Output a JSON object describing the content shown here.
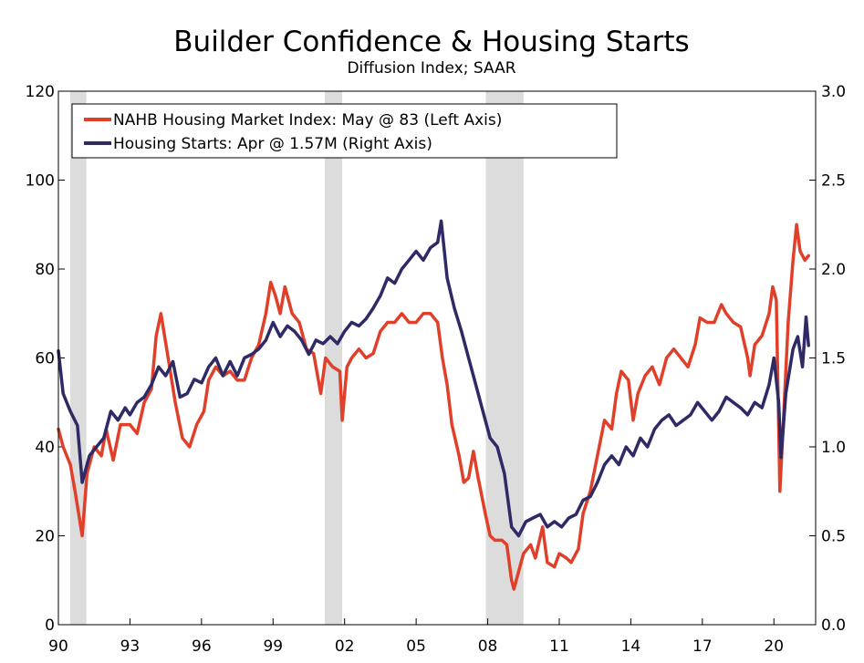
{
  "chart_data": {
    "type": "line",
    "title": "Builder Confidence & Housing Starts",
    "subtitle": "Diffusion Index; SAAR",
    "x_range": [
      1990.0,
      2021.75
    ],
    "x_ticks": [
      1990,
      1993,
      1996,
      1999,
      2002,
      2005,
      2008,
      2011,
      2014,
      2017,
      2020
    ],
    "x_tick_labels": [
      "90",
      "93",
      "96",
      "99",
      "02",
      "05",
      "08",
      "11",
      "14",
      "17",
      "20"
    ],
    "y_left": {
      "min": 0,
      "max": 120,
      "ticks": [
        0,
        20,
        40,
        60,
        80,
        100,
        120
      ],
      "tick_labels": [
        "0",
        "20",
        "40",
        "60",
        "80",
        "100",
        "120"
      ]
    },
    "y_right": {
      "min": 0.0,
      "max": 3.0,
      "ticks": [
        0.0,
        0.5,
        1.0,
        1.5,
        2.0,
        2.5,
        3.0
      ],
      "tick_labels": [
        "0.0",
        "0.5",
        "1.0",
        "1.5",
        "2.0",
        "2.5",
        "3.0"
      ]
    },
    "recessions": [
      [
        1990.5,
        1991.17
      ],
      [
        2001.17,
        2001.9
      ],
      [
        2007.92,
        2009.5
      ]
    ],
    "legend_position": "top-left",
    "series": [
      {
        "name": "NAHB Housing Market Index: May @ 83 (Left Axis)",
        "axis": "left",
        "color": "#e0402a",
        "points": [
          [
            1990.0,
            44
          ],
          [
            1990.2,
            40
          ],
          [
            1990.5,
            36
          ],
          [
            1990.7,
            30
          ],
          [
            1991.0,
            20
          ],
          [
            1991.2,
            34
          ],
          [
            1991.5,
            40
          ],
          [
            1991.8,
            38
          ],
          [
            1992.0,
            44
          ],
          [
            1992.3,
            37
          ],
          [
            1992.6,
            45
          ],
          [
            1993.0,
            45
          ],
          [
            1993.3,
            43
          ],
          [
            1993.6,
            50
          ],
          [
            1993.9,
            53
          ],
          [
            1994.1,
            65
          ],
          [
            1994.3,
            70
          ],
          [
            1994.6,
            60
          ],
          [
            1994.9,
            50
          ],
          [
            1995.2,
            42
          ],
          [
            1995.5,
            40
          ],
          [
            1995.8,
            45
          ],
          [
            1996.1,
            48
          ],
          [
            1996.3,
            55
          ],
          [
            1996.6,
            58
          ],
          [
            1996.9,
            56
          ],
          [
            1997.2,
            57
          ],
          [
            1997.5,
            55
          ],
          [
            1997.8,
            55
          ],
          [
            1998.1,
            60
          ],
          [
            1998.4,
            63
          ],
          [
            1998.7,
            70
          ],
          [
            1998.9,
            77
          ],
          [
            1999.1,
            74
          ],
          [
            1999.3,
            70
          ],
          [
            1999.5,
            76
          ],
          [
            1999.8,
            70
          ],
          [
            2000.1,
            68
          ],
          [
            2000.4,
            62
          ],
          [
            2000.7,
            61
          ],
          [
            2001.0,
            52
          ],
          [
            2001.2,
            60
          ],
          [
            2001.5,
            58
          ],
          [
            2001.8,
            57
          ],
          [
            2001.9,
            46
          ],
          [
            2002.1,
            58
          ],
          [
            2002.3,
            60
          ],
          [
            2002.6,
            62
          ],
          [
            2002.9,
            60
          ],
          [
            2003.2,
            61
          ],
          [
            2003.5,
            66
          ],
          [
            2003.8,
            68
          ],
          [
            2004.1,
            68
          ],
          [
            2004.4,
            70
          ],
          [
            2004.7,
            68
          ],
          [
            2005.0,
            68
          ],
          [
            2005.3,
            70
          ],
          [
            2005.6,
            70
          ],
          [
            2005.9,
            68
          ],
          [
            2006.1,
            60
          ],
          [
            2006.3,
            54
          ],
          [
            2006.5,
            45
          ],
          [
            2006.8,
            38
          ],
          [
            2007.0,
            32
          ],
          [
            2007.2,
            33
          ],
          [
            2007.4,
            39
          ],
          [
            2007.6,
            33
          ],
          [
            2007.9,
            25
          ],
          [
            2008.1,
            20
          ],
          [
            2008.3,
            19
          ],
          [
            2008.6,
            19
          ],
          [
            2008.8,
            18
          ],
          [
            2009.0,
            10
          ],
          [
            2009.1,
            8
          ],
          [
            2009.3,
            12
          ],
          [
            2009.5,
            16
          ],
          [
            2009.8,
            18
          ],
          [
            2010.0,
            15
          ],
          [
            2010.3,
            22
          ],
          [
            2010.5,
            14
          ],
          [
            2010.8,
            13
          ],
          [
            2011.0,
            16
          ],
          [
            2011.3,
            15
          ],
          [
            2011.5,
            14
          ],
          [
            2011.8,
            17
          ],
          [
            2012.0,
            25
          ],
          [
            2012.3,
            30
          ],
          [
            2012.6,
            38
          ],
          [
            2012.9,
            46
          ],
          [
            2013.2,
            44
          ],
          [
            2013.4,
            52
          ],
          [
            2013.6,
            57
          ],
          [
            2013.9,
            55
          ],
          [
            2014.1,
            46
          ],
          [
            2014.3,
            52
          ],
          [
            2014.6,
            56
          ],
          [
            2014.9,
            58
          ],
          [
            2015.2,
            54
          ],
          [
            2015.5,
            60
          ],
          [
            2015.8,
            62
          ],
          [
            2016.1,
            60
          ],
          [
            2016.4,
            58
          ],
          [
            2016.7,
            63
          ],
          [
            2016.9,
            69
          ],
          [
            2017.2,
            68
          ],
          [
            2017.5,
            68
          ],
          [
            2017.8,
            72
          ],
          [
            2018.0,
            70
          ],
          [
            2018.3,
            68
          ],
          [
            2018.6,
            67
          ],
          [
            2018.9,
            60
          ],
          [
            2019.0,
            56
          ],
          [
            2019.2,
            63
          ],
          [
            2019.5,
            65
          ],
          [
            2019.8,
            70
          ],
          [
            2019.95,
            76
          ],
          [
            2020.1,
            73
          ],
          [
            2020.25,
            30
          ],
          [
            2020.4,
            46
          ],
          [
            2020.6,
            68
          ],
          [
            2020.8,
            82
          ],
          [
            2020.95,
            90
          ],
          [
            2021.1,
            84
          ],
          [
            2021.3,
            82
          ],
          [
            2021.45,
            83
          ]
        ]
      },
      {
        "name": "Housing Starts: Apr @ 1.57M (Right Axis)",
        "axis": "right",
        "color": "#2e2a66",
        "points": [
          [
            1990.0,
            1.54
          ],
          [
            1990.2,
            1.3
          ],
          [
            1990.5,
            1.2
          ],
          [
            1990.8,
            1.12
          ],
          [
            1991.0,
            0.8
          ],
          [
            1991.3,
            0.95
          ],
          [
            1991.6,
            1.0
          ],
          [
            1991.9,
            1.05
          ],
          [
            1992.2,
            1.2
          ],
          [
            1992.5,
            1.15
          ],
          [
            1992.8,
            1.22
          ],
          [
            1993.0,
            1.18
          ],
          [
            1993.3,
            1.25
          ],
          [
            1993.6,
            1.28
          ],
          [
            1993.9,
            1.35
          ],
          [
            1994.2,
            1.45
          ],
          [
            1994.5,
            1.4
          ],
          [
            1994.8,
            1.48
          ],
          [
            1995.1,
            1.28
          ],
          [
            1995.4,
            1.3
          ],
          [
            1995.7,
            1.38
          ],
          [
            1996.0,
            1.36
          ],
          [
            1996.3,
            1.45
          ],
          [
            1996.6,
            1.5
          ],
          [
            1996.9,
            1.4
          ],
          [
            1997.2,
            1.48
          ],
          [
            1997.5,
            1.4
          ],
          [
            1997.8,
            1.5
          ],
          [
            1998.1,
            1.52
          ],
          [
            1998.4,
            1.55
          ],
          [
            1998.7,
            1.6
          ],
          [
            1999.0,
            1.7
          ],
          [
            1999.3,
            1.62
          ],
          [
            1999.6,
            1.68
          ],
          [
            1999.9,
            1.65
          ],
          [
            2000.2,
            1.6
          ],
          [
            2000.5,
            1.52
          ],
          [
            2000.8,
            1.6
          ],
          [
            2001.1,
            1.58
          ],
          [
            2001.4,
            1.62
          ],
          [
            2001.7,
            1.58
          ],
          [
            2002.0,
            1.65
          ],
          [
            2002.3,
            1.7
          ],
          [
            2002.6,
            1.68
          ],
          [
            2002.9,
            1.72
          ],
          [
            2003.2,
            1.78
          ],
          [
            2003.5,
            1.85
          ],
          [
            2003.8,
            1.95
          ],
          [
            2004.1,
            1.92
          ],
          [
            2004.4,
            2.0
          ],
          [
            2004.7,
            2.05
          ],
          [
            2005.0,
            2.1
          ],
          [
            2005.3,
            2.05
          ],
          [
            2005.6,
            2.12
          ],
          [
            2005.9,
            2.15
          ],
          [
            2006.05,
            2.27
          ],
          [
            2006.3,
            1.95
          ],
          [
            2006.6,
            1.78
          ],
          [
            2006.9,
            1.65
          ],
          [
            2007.2,
            1.5
          ],
          [
            2007.5,
            1.35
          ],
          [
            2007.8,
            1.2
          ],
          [
            2008.1,
            1.05
          ],
          [
            2008.4,
            1.0
          ],
          [
            2008.7,
            0.85
          ],
          [
            2009.0,
            0.55
          ],
          [
            2009.3,
            0.5
          ],
          [
            2009.6,
            0.58
          ],
          [
            2009.9,
            0.6
          ],
          [
            2010.2,
            0.62
          ],
          [
            2010.5,
            0.55
          ],
          [
            2010.8,
            0.58
          ],
          [
            2011.1,
            0.55
          ],
          [
            2011.4,
            0.6
          ],
          [
            2011.7,
            0.62
          ],
          [
            2012.0,
            0.7
          ],
          [
            2012.3,
            0.72
          ],
          [
            2012.6,
            0.8
          ],
          [
            2012.9,
            0.9
          ],
          [
            2013.2,
            0.95
          ],
          [
            2013.5,
            0.9
          ],
          [
            2013.8,
            1.0
          ],
          [
            2014.1,
            0.95
          ],
          [
            2014.4,
            1.05
          ],
          [
            2014.7,
            1.0
          ],
          [
            2015.0,
            1.1
          ],
          [
            2015.3,
            1.15
          ],
          [
            2015.6,
            1.18
          ],
          [
            2015.9,
            1.12
          ],
          [
            2016.2,
            1.15
          ],
          [
            2016.5,
            1.18
          ],
          [
            2016.8,
            1.25
          ],
          [
            2017.1,
            1.2
          ],
          [
            2017.4,
            1.15
          ],
          [
            2017.7,
            1.2
          ],
          [
            2018.0,
            1.28
          ],
          [
            2018.3,
            1.25
          ],
          [
            2018.6,
            1.22
          ],
          [
            2018.9,
            1.18
          ],
          [
            2019.2,
            1.25
          ],
          [
            2019.5,
            1.22
          ],
          [
            2019.8,
            1.35
          ],
          [
            2020.0,
            1.5
          ],
          [
            2020.2,
            1.25
          ],
          [
            2020.3,
            0.94
          ],
          [
            2020.5,
            1.3
          ],
          [
            2020.8,
            1.55
          ],
          [
            2021.0,
            1.62
          ],
          [
            2021.2,
            1.45
          ],
          [
            2021.35,
            1.73
          ],
          [
            2021.45,
            1.57
          ]
        ]
      }
    ]
  }
}
